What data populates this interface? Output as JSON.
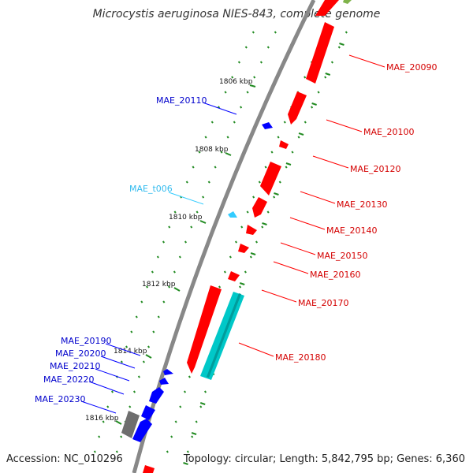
{
  "title": "Microcystis aeruginosa NIES-843, complete genome",
  "footer": {
    "accession": "Accession: NC_010296",
    "topology": "Topology: circular; Length: 5,842,795 bp; Genes: 6,360"
  },
  "colors": {
    "backbone": "#888888",
    "tick": "#228b22",
    "forward_gene": "#ff0000",
    "reverse_gene": "#0000ff",
    "trna": "#33ccff",
    "other_feature": "#00c8c8",
    "pseudo": "#777777",
    "label_forward": "#d40000",
    "label_reverse": "#0000cc",
    "label_trna": "#33bbee"
  },
  "scale_labels": [
    "1806 kbp",
    "1808 kbp",
    "1810 kbp",
    "1812 kbp",
    "1814 kbp",
    "1816 kbp"
  ],
  "genes_right": [
    {
      "id": "MAE_20090"
    },
    {
      "id": "MAE_20100"
    },
    {
      "id": "MAE_20120"
    },
    {
      "id": "MAE_20130"
    },
    {
      "id": "MAE_20140"
    },
    {
      "id": "MAE_20150"
    },
    {
      "id": "MAE_20160"
    },
    {
      "id": "MAE_20170"
    },
    {
      "id": "MAE_20180"
    }
  ],
  "genes_left": [
    {
      "id": "MAE_20110",
      "kind": "reverse"
    },
    {
      "id": "MAE_t006",
      "kind": "trna"
    },
    {
      "id": "MAE_20190",
      "kind": "reverse"
    },
    {
      "id": "MAE_20200",
      "kind": "reverse"
    },
    {
      "id": "MAE_20210",
      "kind": "reverse"
    },
    {
      "id": "MAE_20220",
      "kind": "reverse"
    },
    {
      "id": "MAE_20230",
      "kind": "reverse"
    }
  ]
}
